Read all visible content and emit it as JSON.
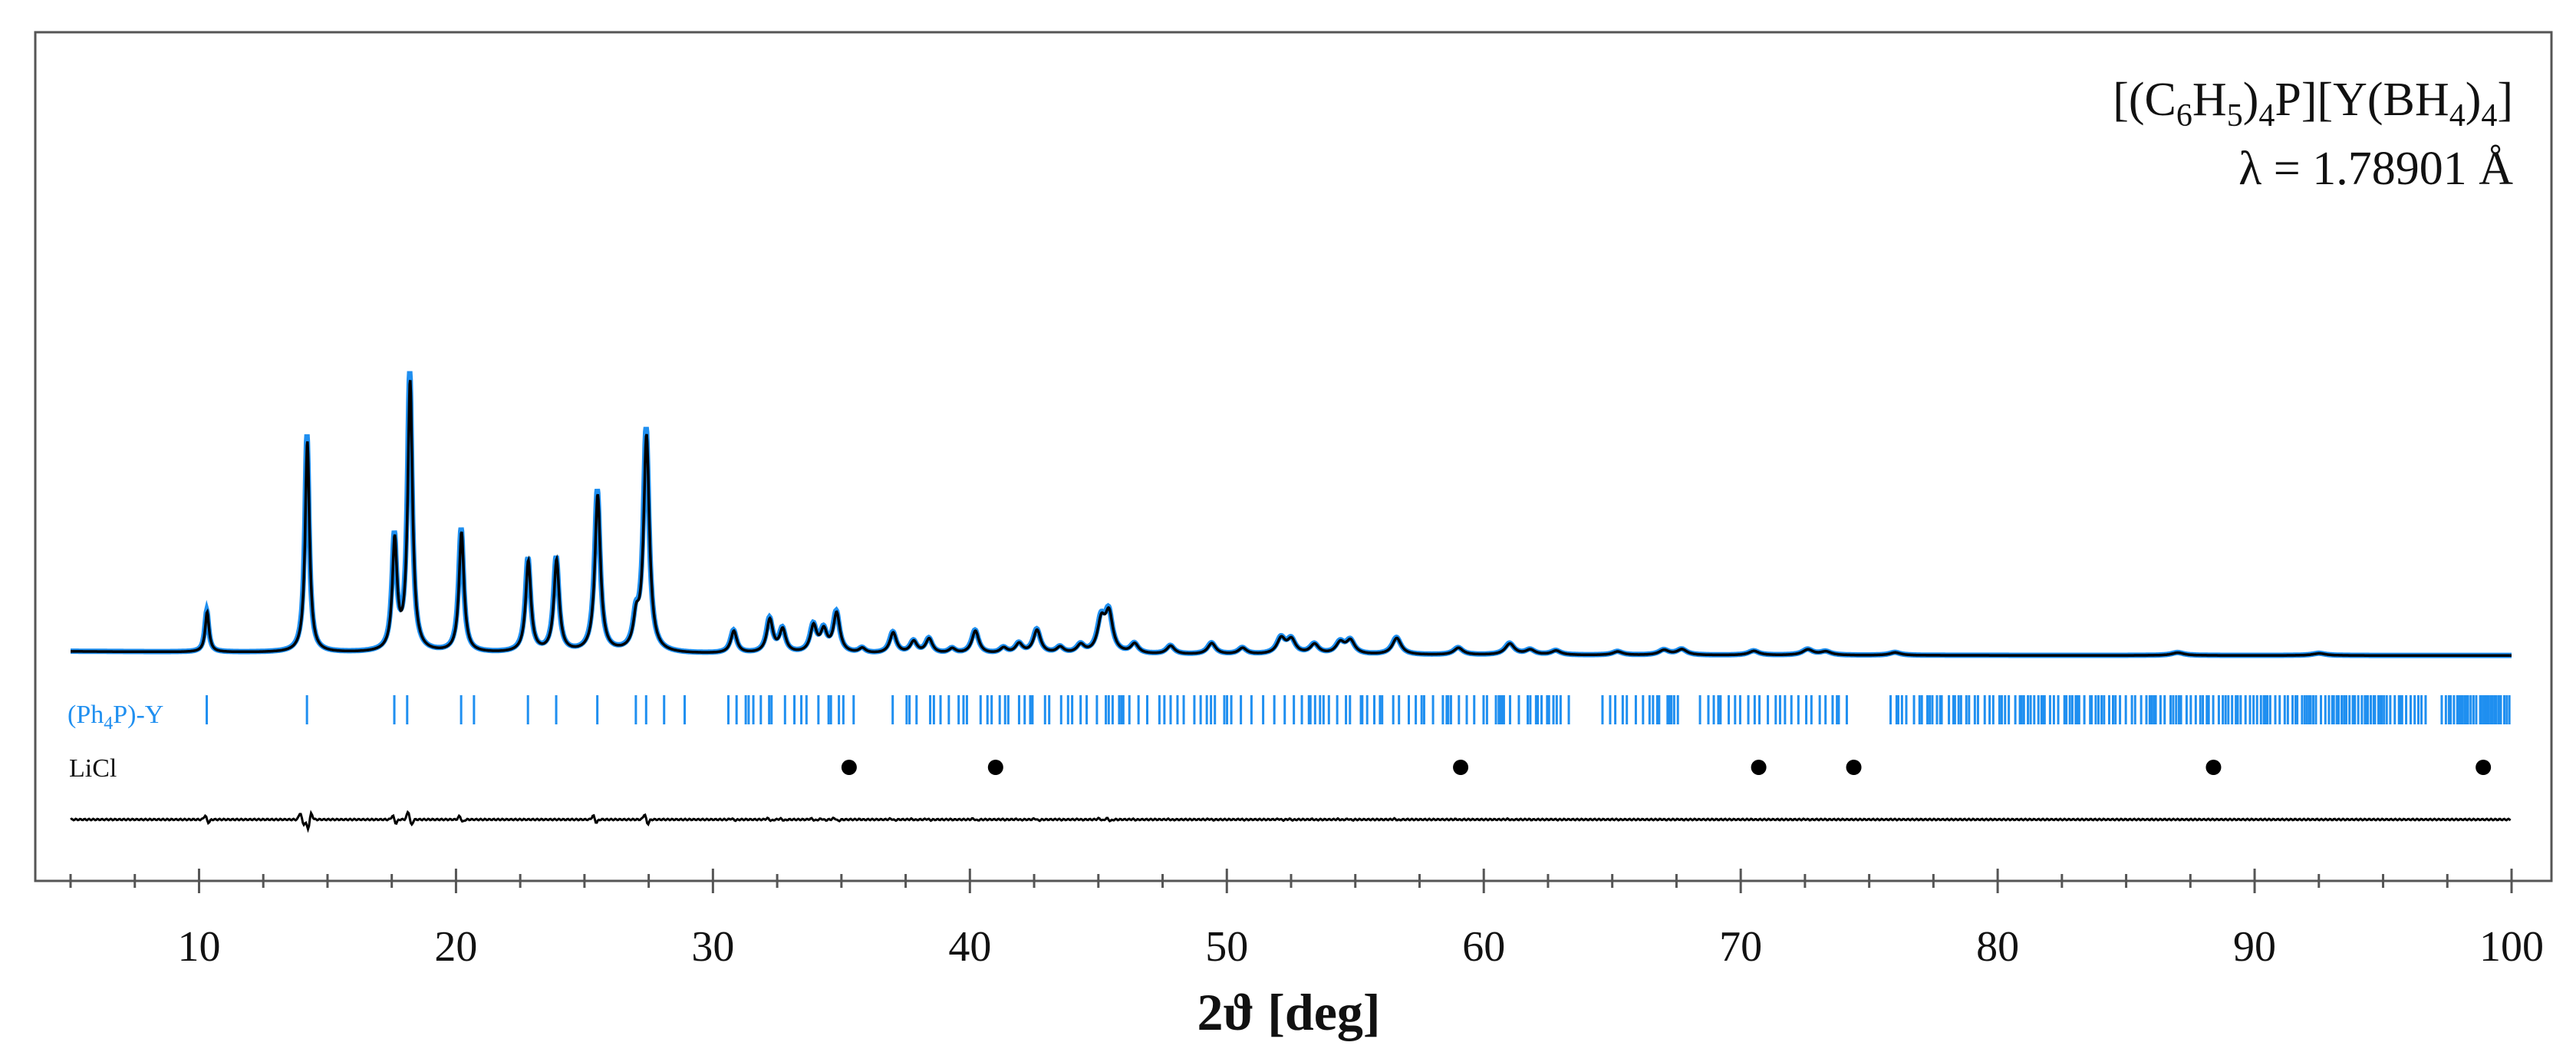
{
  "chart_data": {
    "type": "line",
    "xlabel": "2ϑ [deg]",
    "xlim": [
      5,
      100
    ],
    "x_ticks": [
      10,
      20,
      30,
      40,
      50,
      60,
      70,
      80,
      90,
      100
    ],
    "x_tick_labels": [
      "10",
      "20",
      "30",
      "40",
      "50",
      "60",
      "70",
      "80",
      "90",
      "100"
    ],
    "x_minor_step": 2.5,
    "grid": false,
    "y_axis_labels": false,
    "annotation": {
      "formula_parts": [
        "[(C",
        "6",
        "H",
        "5",
        ")",
        "4",
        "P][Y(BH",
        "4",
        ")",
        "4",
        "]"
      ],
      "wavelength": "λ = 1.78901 Å"
    },
    "colors": {
      "observed": "#1f8ff0",
      "calculated": "#000000",
      "reflections": "#1f8ff0",
      "licl": "#000000"
    },
    "baseline": 4,
    "peaks": [
      {
        "x": 10.3,
        "y": 58
      },
      {
        "x": 14.2,
        "y": 306
      },
      {
        "x": 17.6,
        "y": 158
      },
      {
        "x": 18.2,
        "y": 390
      },
      {
        "x": 20.2,
        "y": 174
      },
      {
        "x": 22.8,
        "y": 132
      },
      {
        "x": 23.9,
        "y": 133
      },
      {
        "x": 25.5,
        "y": 228
      },
      {
        "x": 27.0,
        "y": 40
      },
      {
        "x": 27.4,
        "y": 313
      },
      {
        "x": 30.8,
        "y": 32
      },
      {
        "x": 32.2,
        "y": 48
      },
      {
        "x": 32.7,
        "y": 33
      },
      {
        "x": 33.9,
        "y": 38
      },
      {
        "x": 34.3,
        "y": 30
      },
      {
        "x": 34.8,
        "y": 57
      },
      {
        "x": 35.8,
        "y": 7
      },
      {
        "x": 37.0,
        "y": 30
      },
      {
        "x": 37.8,
        "y": 17
      },
      {
        "x": 38.4,
        "y": 21
      },
      {
        "x": 39.3,
        "y": 7
      },
      {
        "x": 40.2,
        "y": 33
      },
      {
        "x": 41.3,
        "y": 8
      },
      {
        "x": 41.9,
        "y": 14
      },
      {
        "x": 42.6,
        "y": 34
      },
      {
        "x": 43.5,
        "y": 9
      },
      {
        "x": 44.3,
        "y": 12
      },
      {
        "x": 45.1,
        "y": 44
      },
      {
        "x": 45.4,
        "y": 55
      },
      {
        "x": 46.4,
        "y": 14
      },
      {
        "x": 47.8,
        "y": 12
      },
      {
        "x": 49.4,
        "y": 16
      },
      {
        "x": 50.6,
        "y": 9
      },
      {
        "x": 52.1,
        "y": 22
      },
      {
        "x": 52.5,
        "y": 20
      },
      {
        "x": 53.4,
        "y": 14
      },
      {
        "x": 54.4,
        "y": 16
      },
      {
        "x": 54.8,
        "y": 19
      },
      {
        "x": 56.6,
        "y": 24
      },
      {
        "x": 59.0,
        "y": 10
      },
      {
        "x": 61.0,
        "y": 16
      },
      {
        "x": 61.8,
        "y": 7
      },
      {
        "x": 62.8,
        "y": 6
      },
      {
        "x": 65.2,
        "y": 5
      },
      {
        "x": 67.0,
        "y": 7
      },
      {
        "x": 67.7,
        "y": 8
      },
      {
        "x": 70.5,
        "y": 6
      },
      {
        "x": 72.6,
        "y": 8
      },
      {
        "x": 73.3,
        "y": 5
      },
      {
        "x": 76.0,
        "y": 4
      },
      {
        "x": 87.0,
        "y": 4
      },
      {
        "x": 92.5,
        "y": 3
      }
    ],
    "phase_labels": {
      "primary": {
        "prefix": "(Ph",
        "sub": "4",
        "suffix": "P)-Y"
      },
      "licl": "LiCl"
    },
    "reflections_sparse": [
      10.3,
      14.2,
      17.6,
      18.1,
      20.2,
      20.7,
      22.8,
      23.9,
      25.5,
      27.0,
      27.4,
      28.1,
      28.9
    ],
    "reflections_dense_range": [
      30.6,
      100
    ],
    "reflections_dense_gaps": [
      [
        35.5,
        36.9
      ],
      [
        63.4,
        64.6
      ],
      [
        67.6,
        68.4
      ],
      [
        74.2,
        75.7
      ],
      [
        96.7,
        97.2
      ]
    ],
    "licl_reflections": [
      35.3,
      41.0,
      59.1,
      70.7,
      74.4,
      88.4,
      98.9
    ],
    "difference_features": [
      {
        "x": 10.3,
        "a": 6,
        "b": -5
      },
      {
        "x": 14.0,
        "a": 10,
        "b": -8
      },
      {
        "x": 14.3,
        "a": -14,
        "b": 10
      },
      {
        "x": 17.6,
        "a": 6,
        "b": -6
      },
      {
        "x": 18.2,
        "a": 12,
        "b": -9
      },
      {
        "x": 20.2,
        "a": 5,
        "b": -4
      },
      {
        "x": 25.4,
        "a": 6,
        "b": -5
      },
      {
        "x": 27.4,
        "a": 8,
        "b": -7
      }
    ]
  }
}
